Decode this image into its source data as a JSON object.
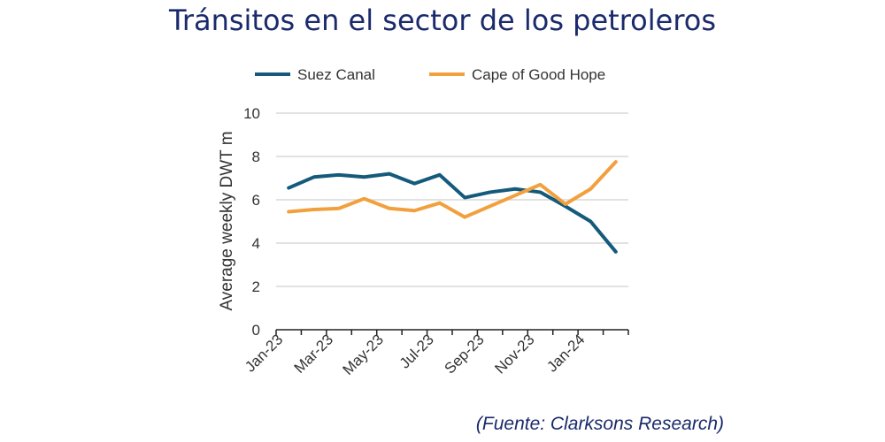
{
  "title": "Tránsitos en el sector de los petroleros",
  "source": "(Fuente: Clarksons Research)",
  "chart_data": {
    "type": "line",
    "title": "Tránsitos en el sector de los petroleros",
    "ylabel": "Average weekly DWT m",
    "xlabel": "",
    "ylim": [
      0,
      10
    ],
    "yticks": [
      0,
      2,
      4,
      6,
      8,
      10
    ],
    "grid": true,
    "legend_placement": "top",
    "categories": [
      "Jan-23",
      "Feb-23",
      "Mar-23",
      "Apr-23",
      "May-23",
      "Jun-23",
      "Jul-23",
      "Aug-23",
      "Sep-23",
      "Oct-23",
      "Nov-23",
      "Dec-23",
      "Jan-24",
      "Feb-24"
    ],
    "tick_labels": [
      "Jan-23",
      "Mar-23",
      "May-23",
      "Jul-23",
      "Sep-23",
      "Nov-23",
      "Jan-24"
    ],
    "series": [
      {
        "name": "Suez Canal",
        "color": "#145a7a",
        "values": [
          6.55,
          7.05,
          7.15,
          7.05,
          7.2,
          6.75,
          7.15,
          6.1,
          6.35,
          6.5,
          6.35,
          5.7,
          5.0,
          3.6
        ]
      },
      {
        "name": "Cape of Good Hope",
        "color": "#f2a03d",
        "values": [
          5.45,
          5.55,
          5.6,
          6.05,
          5.6,
          5.5,
          5.85,
          5.2,
          5.7,
          6.2,
          6.7,
          5.8,
          6.5,
          7.75
        ]
      }
    ]
  }
}
